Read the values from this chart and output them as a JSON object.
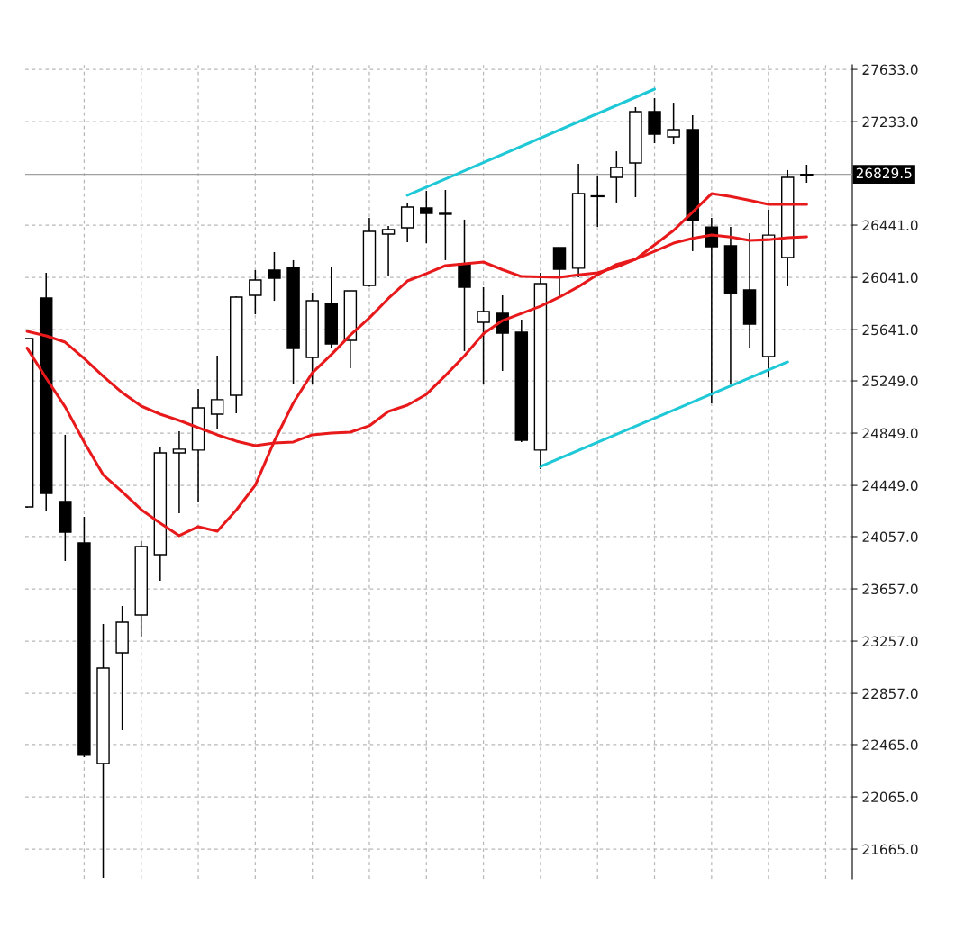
{
  "chart_data": {
    "type": "candlestick",
    "categories": [
      null,
      null,
      null,
      null,
      null,
      null,
      null,
      null,
      null,
      null,
      null,
      null,
      null,
      null,
      null,
      null,
      null,
      null,
      null,
      null,
      null,
      null,
      null,
      null,
      null,
      null,
      null,
      null,
      null,
      null,
      null,
      null,
      null,
      null,
      null,
      null,
      null,
      null,
      null,
      null,
      null,
      null
    ],
    "ohlc": [
      [
        24284,
        25573,
        24277,
        25573
      ],
      [
        25883,
        26076,
        24250,
        24388
      ],
      [
        24326,
        24836,
        23871,
        24091
      ],
      [
        24009,
        24209,
        22369,
        22383
      ],
      [
        22321,
        23389,
        21445,
        23051
      ],
      [
        23168,
        23526,
        22575,
        23402
      ],
      [
        23457,
        24023,
        23292,
        23981
      ],
      [
        23919,
        24746,
        23719,
        24698
      ],
      [
        24698,
        24863,
        24236,
        24726
      ],
      [
        24719,
        25187,
        24319,
        25042
      ],
      [
        24994,
        25442,
        24877,
        25105
      ],
      [
        25139,
        25897,
        25001,
        25890
      ],
      [
        25904,
        26097,
        25759,
        26021
      ],
      [
        26097,
        26235,
        25862,
        26035
      ],
      [
        26117,
        26173,
        25222,
        25497
      ],
      [
        25428,
        25925,
        25222,
        25862
      ],
      [
        25842,
        26117,
        25497,
        25532
      ],
      [
        25559,
        25938,
        25346,
        25938
      ],
      [
        25980,
        26496,
        25970,
        26393
      ],
      [
        26372,
        26434,
        26055,
        26407
      ],
      [
        26421,
        26607,
        26310,
        26579
      ],
      [
        26572,
        26703,
        26303,
        26531
      ],
      [
        26531,
        26710,
        26173,
        26524
      ],
      [
        26145,
        26483,
        25477,
        25966
      ],
      [
        25697,
        25966,
        25222,
        25780
      ],
      [
        25766,
        25904,
        25325,
        25614
      ],
      [
        25621,
        25718,
        24781,
        24794
      ],
      [
        24719,
        26076,
        24574,
        25993
      ],
      [
        26269,
        26269,
        25890,
        26104
      ],
      [
        26111,
        26910,
        26042,
        26683
      ],
      [
        26662,
        26814,
        26428,
        26662
      ],
      [
        26807,
        27006,
        26614,
        26882
      ],
      [
        26917,
        27344,
        26655,
        27310
      ],
      [
        27310,
        27413,
        27068,
        27137
      ],
      [
        27117,
        27378,
        27061,
        27172
      ],
      [
        27172,
        27282,
        26242,
        26476
      ],
      [
        26427,
        26496,
        25077,
        26276
      ],
      [
        26283,
        26427,
        25228,
        25918
      ],
      [
        25945,
        26379,
        25504,
        25683
      ],
      [
        25435,
        26558,
        25277,
        26365
      ],
      [
        26193,
        26862,
        25973,
        26807
      ],
      [
        26825,
        26903,
        26765,
        26829.5
      ]
    ],
    "series": [
      {
        "type": "line",
        "color": "#e8191b",
        "values": [
          25500,
          25270,
          25050,
          24780,
          24530,
          24400,
          24264,
          24160,
          24064,
          24133,
          24098,
          24260,
          24450,
          24787,
          25080,
          25310,
          25450,
          25600,
          25731,
          25880,
          26014,
          26070,
          26131,
          26145,
          26159,
          26100,
          26048,
          26045,
          26041,
          26060,
          26076,
          26120,
          26180,
          26290,
          26400,
          26540,
          26682,
          26660,
          26630,
          26600,
          26600,
          26600
        ]
      },
      {
        "type": "line",
        "color": "#e8191b",
        "values": [
          25628,
          25594,
          25545,
          25421,
          25284,
          25159,
          25056,
          24994,
          24946,
          24891,
          24836,
          24788,
          24753,
          24774,
          24781,
          24836,
          24850,
          24856,
          24905,
          25015,
          25063,
          25146,
          25290,
          25440,
          25610,
          25710,
          25765,
          25820,
          25890,
          25970,
          26062,
          26140,
          26180,
          26240,
          26303,
          26340,
          26365,
          26350,
          26324,
          26330,
          26345,
          26352
        ]
      },
      {
        "type": "line",
        "color": "#1fc8d6",
        "values": [
          null,
          null,
          null,
          null,
          null,
          null,
          null,
          null,
          null,
          null,
          null,
          null,
          null,
          null,
          null,
          null,
          null,
          null,
          null,
          null,
          26669,
          null,
          null,
          null,
          null,
          null,
          null,
          null,
          null,
          null,
          null,
          null,
          null,
          27482,
          null,
          null,
          null,
          null,
          null,
          null,
          null,
          null
        ]
      },
      {
        "type": "line",
        "color": "#1fc8d6",
        "values": [
          null,
          null,
          null,
          null,
          null,
          null,
          null,
          null,
          null,
          null,
          null,
          null,
          null,
          null,
          null,
          null,
          null,
          null,
          null,
          null,
          null,
          null,
          null,
          null,
          null,
          null,
          null,
          24594,
          null,
          null,
          null,
          null,
          null,
          null,
          null,
          null,
          null,
          null,
          null,
          null,
          25394,
          null
        ]
      }
    ],
    "ylim": [
      21438,
      27668
    ],
    "yticks": [
      {
        "value": 27633,
        "label": "27633.0"
      },
      {
        "value": 27233,
        "label": "27233.0"
      },
      {
        "value": 26441,
        "label": "26441.0"
      },
      {
        "value": 26041,
        "label": "26041.0"
      },
      {
        "value": 25641,
        "label": "25641.0"
      },
      {
        "value": 25249,
        "label": "25249.0"
      },
      {
        "value": 24849,
        "label": "24849.0"
      },
      {
        "value": 24449,
        "label": "24449.0"
      },
      {
        "value": 24057,
        "label": "24057.0"
      },
      {
        "value": 23657,
        "label": "23657.0"
      },
      {
        "value": 23257,
        "label": "23257.0"
      },
      {
        "value": 22857,
        "label": "22857.0"
      },
      {
        "value": 22465,
        "label": "22465.0"
      },
      {
        "value": 22065,
        "label": "22065.0"
      },
      {
        "value": 21665,
        "label": "21665.0"
      }
    ],
    "ref_lines": [
      {
        "axis": "y",
        "value": 26829.5,
        "label": "26829.5",
        "color": "#a0a0a0"
      }
    ],
    "grid": true,
    "tick_labels": "y"
  }
}
